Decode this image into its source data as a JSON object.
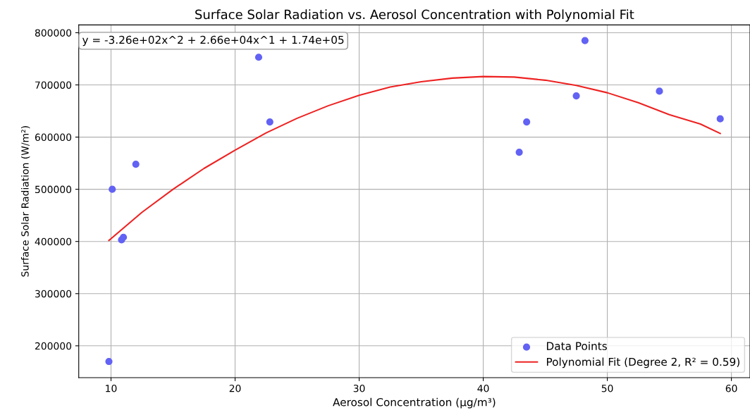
{
  "chart_data": {
    "type": "scatter",
    "title": "Surface Solar Radiation vs. Aerosol Concentration with Polynomial Fit",
    "xlabel": "Aerosol Concentration (µg/m³)",
    "ylabel": "Surface Solar Radiation (W/m²)",
    "annotations": [
      "y = -3.26e+02x^2 + 2.66e+04x^1 + 1.74e+05"
    ],
    "series": [
      {
        "name": "Data Points",
        "color": "#6262f4",
        "marker": "circle",
        "x": [
          9.83,
          10.1,
          10.85,
          11.0,
          12.0,
          21.9,
          22.8,
          42.9,
          43.5,
          47.5,
          48.2,
          54.2,
          59.1
        ],
        "values": [
          170000,
          500000,
          403000,
          408000,
          548000,
          753000,
          629000,
          571000,
          629000,
          679000,
          785000,
          688000,
          635000
        ]
      },
      {
        "name": "Polynomial Fit (Degree 2, R² = 0.59)",
        "type": "line",
        "color": "#ee2222",
        "line_style": "solid",
        "x": [
          9.83,
          12.5,
          15,
          17.5,
          20,
          22.5,
          25,
          27.5,
          30,
          32.5,
          35,
          37.5,
          40,
          42.5,
          45,
          47.5,
          50,
          52.5,
          55,
          57.5,
          59.1
        ],
        "values": [
          402000,
          456000,
          500000,
          540000,
          575000,
          608000,
          636000,
          660000,
          680000,
          696000,
          706000,
          713000,
          716000,
          715000,
          709000,
          699000,
          685000,
          666000,
          643000,
          625000,
          607000
        ]
      }
    ],
    "xlim": [
      7.4,
      61.5
    ],
    "ylim": [
      139000,
      815000
    ],
    "xticks": [
      10,
      20,
      30,
      40,
      50,
      60
    ],
    "yticks": [
      200000,
      300000,
      400000,
      500000,
      600000,
      700000,
      800000
    ],
    "grid": true,
    "legend": "bottom right"
  }
}
